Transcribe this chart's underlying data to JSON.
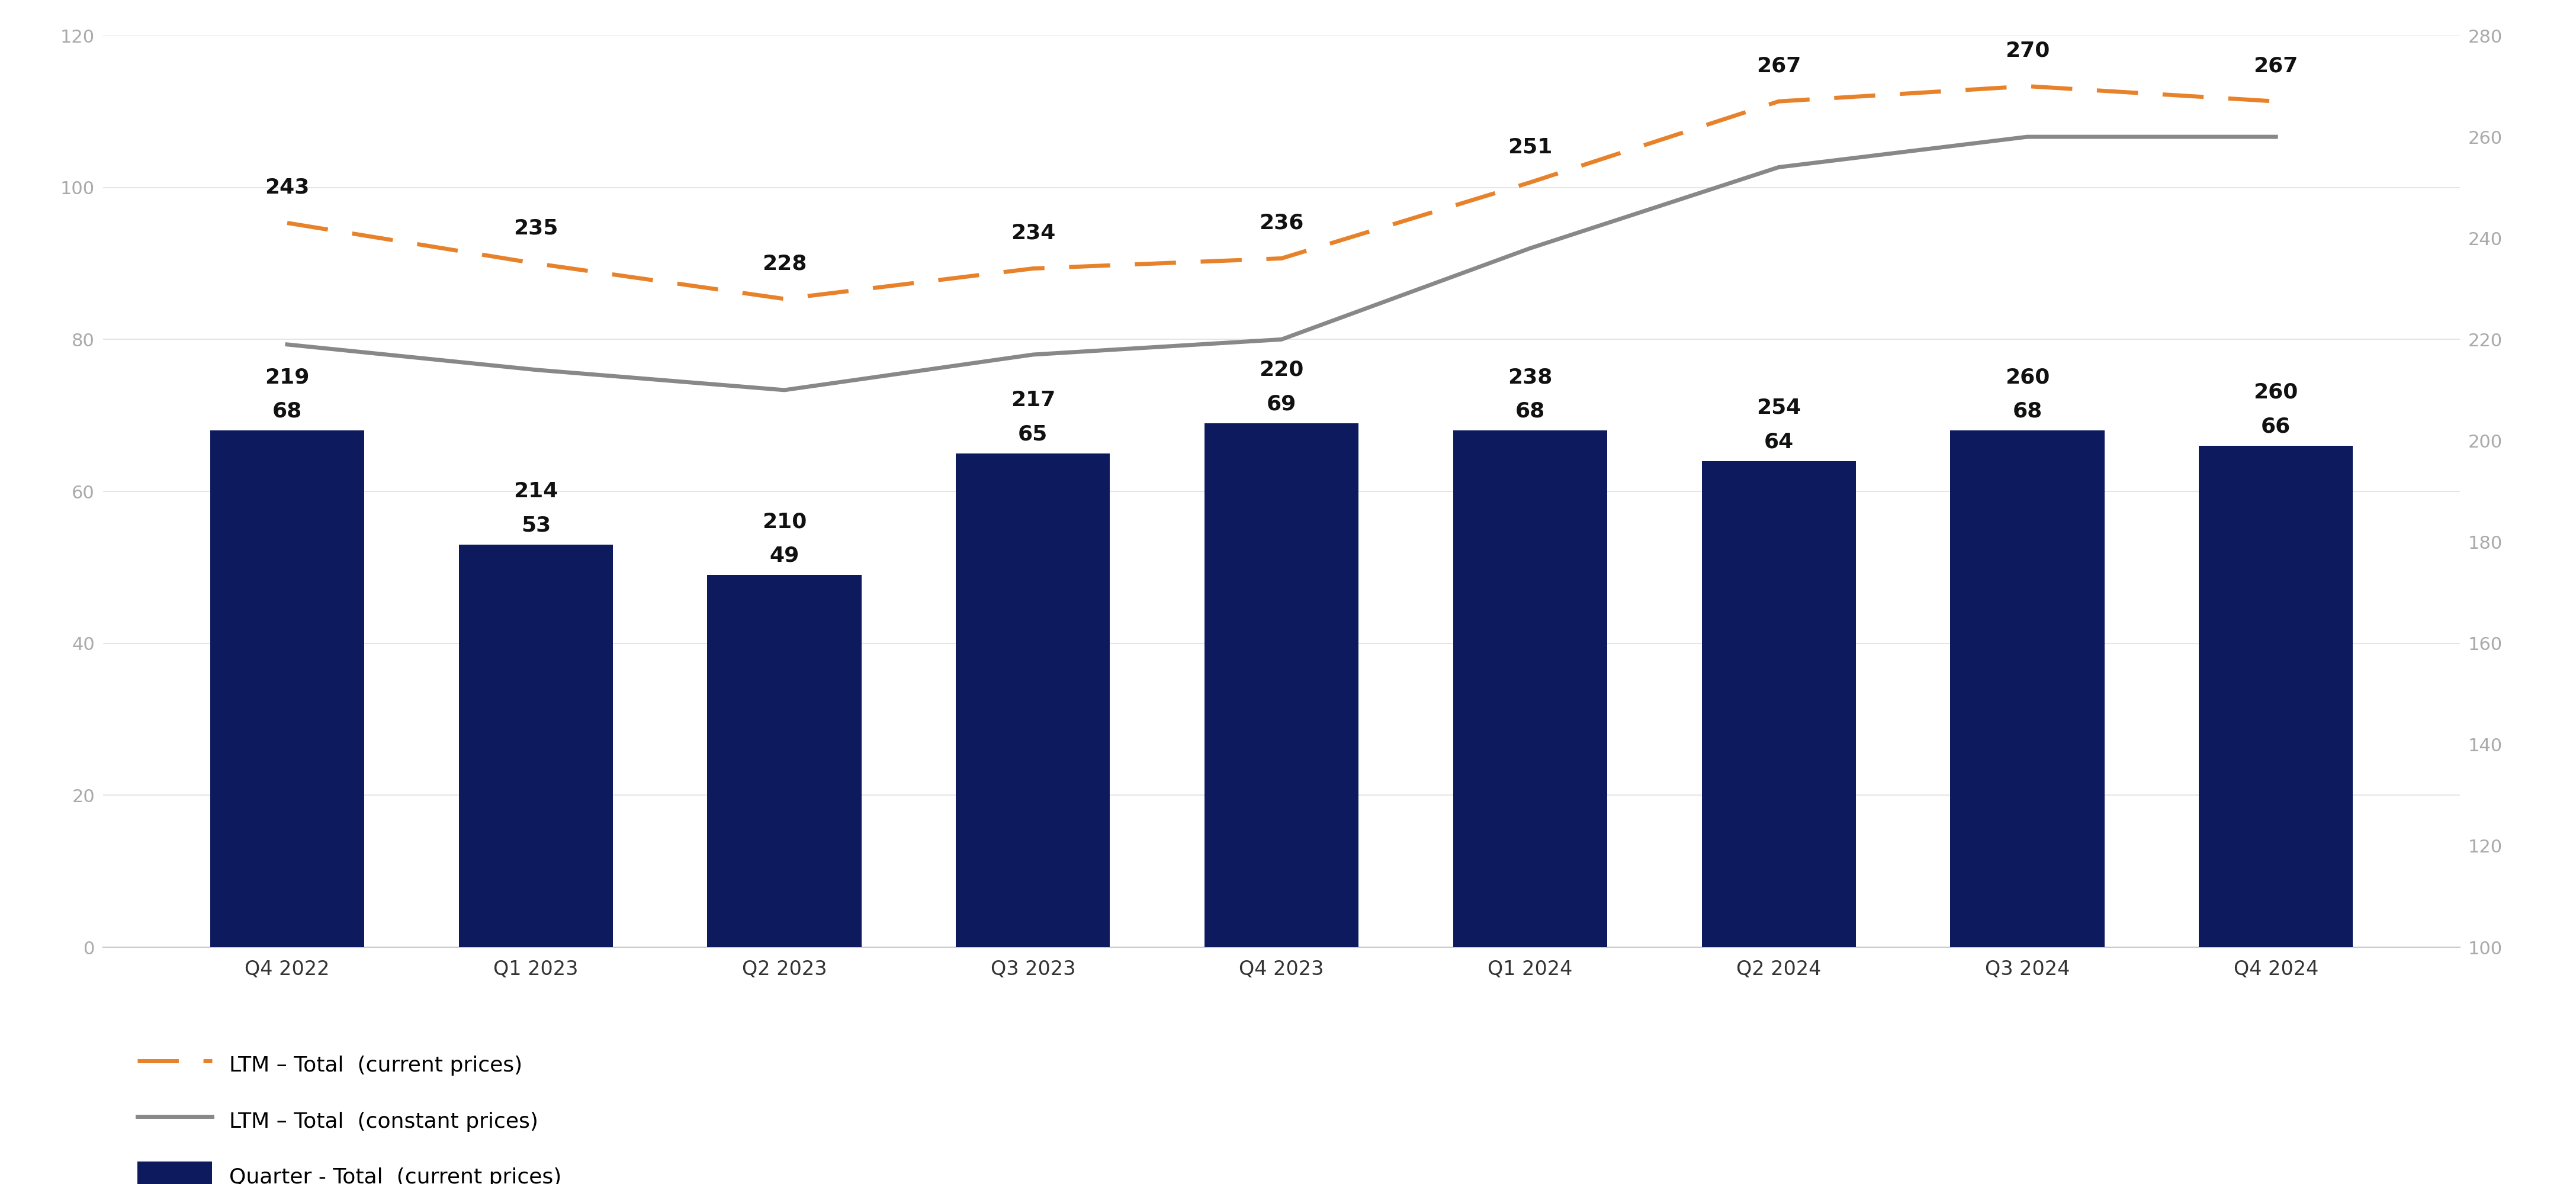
{
  "categories": [
    "Q4 2022",
    "Q1 2023",
    "Q2 2023",
    "Q3 2023",
    "Q4 2023",
    "Q1 2024",
    "Q2 2024",
    "Q3 2024",
    "Q4 2024"
  ],
  "bar_values": [
    68,
    53,
    49,
    65,
    69,
    68,
    64,
    68,
    66
  ],
  "bar_labels": [
    "68",
    "53",
    "49",
    "65",
    "69",
    "68",
    "64",
    "68",
    "66"
  ],
  "ltm_current": [
    243,
    235,
    228,
    234,
    236,
    251,
    267,
    270,
    267
  ],
  "ltm_constant": [
    219,
    214,
    210,
    217,
    220,
    238,
    254,
    260,
    260
  ],
  "ltm_current_labels": [
    "243",
    "235",
    "228",
    "234",
    "236",
    "251",
    "267",
    "270",
    "267"
  ],
  "ltm_constant_labels": [
    "219",
    "214",
    "210",
    "217",
    "220",
    "238",
    "254",
    "260",
    "260"
  ],
  "bar_color": "#0D1B5E",
  "ltm_current_color": "#E8822A",
  "ltm_constant_color": "#888888",
  "background_color": "#FFFFFF",
  "left_ylim": [
    0,
    120
  ],
  "right_ylim": [
    100,
    280
  ],
  "left_yticks": [
    0,
    20,
    40,
    60,
    80,
    100,
    120
  ],
  "right_yticks": [
    100,
    120,
    140,
    160,
    180,
    200,
    220,
    240,
    260,
    280
  ],
  "legend_labels": [
    "LTM – Total  (current prices)",
    "LTM – Total  (constant prices)",
    "Quarter - Total  (current prices)"
  ],
  "bar_label_fontsize": 26,
  "line_label_fontsize": 26,
  "axis_tick_fontsize": 22,
  "legend_fontsize": 26,
  "axis_tick_color": "#AAAAAA",
  "bar_width": 0.62,
  "ltm_current_offsets": [
    5,
    5,
    5,
    5,
    5,
    5,
    5,
    5,
    5
  ],
  "ltm_constant_offsets": [
    -4,
    -4,
    -4,
    -4,
    -6,
    -4,
    -4,
    -4,
    -4
  ]
}
